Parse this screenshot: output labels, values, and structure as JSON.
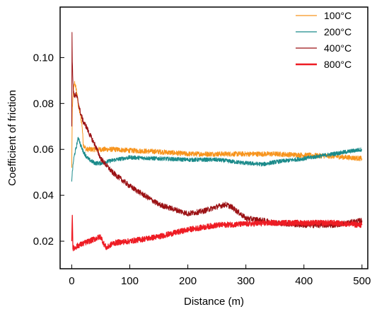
{
  "chart_data": {
    "type": "line",
    "title": "",
    "xlabel": "Distance (m)",
    "ylabel": "Coefficient of friction",
    "xlim": [
      -20,
      510
    ],
    "ylim": [
      0.008,
      0.122
    ],
    "xticks": [
      {
        "value": 0,
        "label": "0"
      },
      {
        "value": 100,
        "label": "100"
      },
      {
        "value": 200,
        "label": "200"
      },
      {
        "value": 300,
        "label": "300"
      },
      {
        "value": 400,
        "label": "400"
      },
      {
        "value": 500,
        "label": "500"
      }
    ],
    "yticks": [
      {
        "value": 0.02,
        "label": "0.02"
      },
      {
        "value": 0.04,
        "label": "0.04"
      },
      {
        "value": 0.06,
        "label": "0.06"
      },
      {
        "value": 0.08,
        "label": "0.08"
      },
      {
        "value": 0.1,
        "label": "0.10"
      }
    ],
    "grid": false,
    "legend_position": "top-right",
    "series": [
      {
        "name": "100°C",
        "color": "#f7941d",
        "noise": 0.0011,
        "x": [
          0,
          1,
          3,
          5,
          8,
          10,
          12,
          15,
          18,
          20,
          25,
          30,
          40,
          50,
          75,
          100,
          150,
          200,
          250,
          300,
          350,
          400,
          450,
          500
        ],
        "y": [
          0.052,
          0.078,
          0.086,
          0.089,
          0.086,
          0.082,
          0.078,
          0.075,
          0.07,
          0.062,
          0.06,
          0.06,
          0.06,
          0.06,
          0.06,
          0.0595,
          0.059,
          0.058,
          0.058,
          0.058,
          0.058,
          0.0575,
          0.057,
          0.056
        ]
      },
      {
        "name": "200°C",
        "color": "#1a8a8a",
        "noise": 0.0009,
        "x": [
          0,
          1,
          3,
          5,
          8,
          10,
          12,
          15,
          20,
          25,
          30,
          40,
          50,
          75,
          100,
          150,
          200,
          250,
          300,
          330,
          350,
          400,
          450,
          500
        ],
        "y": [
          0.046,
          0.05,
          0.055,
          0.058,
          0.061,
          0.064,
          0.065,
          0.062,
          0.059,
          0.057,
          0.0555,
          0.054,
          0.054,
          0.0555,
          0.0565,
          0.056,
          0.0555,
          0.0555,
          0.054,
          0.0535,
          0.0545,
          0.056,
          0.058,
          0.06
        ]
      },
      {
        "name": "400°C",
        "color": "#9b1114",
        "noise": 0.0012,
        "x": [
          0,
          0.5,
          1,
          2,
          3,
          5,
          7,
          10,
          15,
          20,
          25,
          30,
          40,
          50,
          70,
          100,
          125,
          150,
          175,
          200,
          225,
          250,
          265,
          275,
          300,
          330,
          350,
          400,
          450,
          500
        ],
        "y": [
          0.07,
          0.111,
          0.098,
          0.09,
          0.085,
          0.083,
          0.084,
          0.082,
          0.076,
          0.072,
          0.07,
          0.067,
          0.062,
          0.056,
          0.05,
          0.044,
          0.04,
          0.036,
          0.034,
          0.032,
          0.033,
          0.035,
          0.036,
          0.035,
          0.03,
          0.029,
          0.028,
          0.027,
          0.027,
          0.029
        ]
      },
      {
        "name": "800°C",
        "color": "#ee1c24",
        "noise": 0.0012,
        "x": [
          0,
          1,
          2,
          3,
          5,
          10,
          20,
          30,
          40,
          50,
          55,
          60,
          65,
          70,
          80,
          100,
          150,
          200,
          250,
          300,
          350,
          400,
          450,
          500
        ],
        "y": [
          0.02,
          0.032,
          0.017,
          0.017,
          0.017,
          0.018,
          0.019,
          0.02,
          0.021,
          0.022,
          0.019,
          0.017,
          0.018,
          0.019,
          0.0195,
          0.02,
          0.022,
          0.025,
          0.027,
          0.0275,
          0.028,
          0.028,
          0.028,
          0.027
        ]
      }
    ]
  }
}
